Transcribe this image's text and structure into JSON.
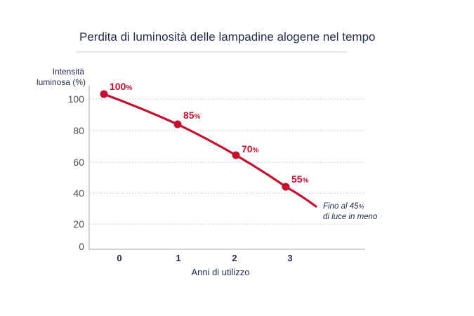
{
  "chart_data": {
    "type": "line",
    "title": "Perdita di luminosità delle lampadine alogene nel tempo",
    "ylabel_line1": "Intensità",
    "ylabel_line2": "luminosa (%)",
    "xlabel": "Anni di utilizzo",
    "yticks": [
      "100",
      "80",
      "60",
      "40",
      "20",
      "0"
    ],
    "ytick_values": [
      100,
      80,
      60,
      40,
      20,
      0
    ],
    "xticks": [
      "0",
      "1",
      "2",
      "3"
    ],
    "ylim": [
      0,
      105
    ],
    "grid": true,
    "series": [
      {
        "name": "Intensità luminosa",
        "x": [
          0,
          1,
          2,
          3
        ],
        "values": [
          100,
          85,
          70,
          55
        ],
        "labels": [
          "100",
          "85",
          "70",
          "55"
        ],
        "label_suffix": "%",
        "trend_end": {
          "x": 3.6,
          "value": 28
        }
      }
    ],
    "annotation": {
      "line1_prefix": "Fino al ",
      "line1_value": "45",
      "line1_suffix": "%",
      "line2": "di luce in meno"
    },
    "colors": {
      "series": "#c8102e",
      "text": "#1f2d4f",
      "grid": "#cfd3da",
      "axis": "#9aa0aa"
    }
  }
}
